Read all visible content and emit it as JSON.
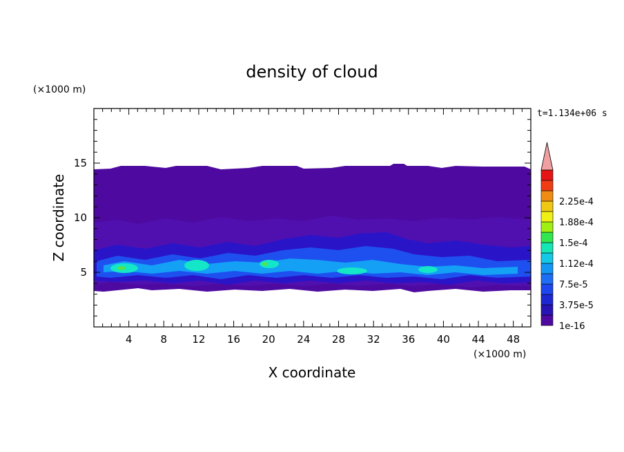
{
  "chart_data": {
    "type": "heatmap",
    "title": "density of cloud",
    "xlabel": "X coordinate",
    "ylabel": "Z coordinate",
    "x_unit": "(×1000 m)",
    "y_unit": "(×1000 m)",
    "time_label": "t=1.134e+06 s",
    "xlim": [
      0,
      50
    ],
    "ylim": [
      0,
      20
    ],
    "x_ticks": [
      4,
      8,
      12,
      16,
      20,
      24,
      28,
      32,
      36,
      40,
      44,
      48
    ],
    "y_ticks": [
      5,
      10,
      15
    ],
    "grid": false,
    "colorbar": {
      "levels": [
        "1e-16",
        "",
        "3.75e-5",
        "",
        "7.5e-5",
        "",
        "1.12e-4",
        "",
        "1.5e-4",
        "",
        "1.88e-4",
        "",
        "2.25e-4",
        ""
      ],
      "colors": [
        "#4e0aa0",
        "#2814b4",
        "#1e28d2",
        "#1e46ee",
        "#1e6ef5",
        "#1496f5",
        "#14c8e6",
        "#14e6b4",
        "#32e650",
        "#a0f014",
        "#f0f014",
        "#f0c814",
        "#f08c14",
        "#f03c14",
        "#e61414"
      ],
      "extend_color": "#f0a0a0"
    },
    "cloud_layer_z_range": [
      3.4,
      14.5
    ]
  }
}
